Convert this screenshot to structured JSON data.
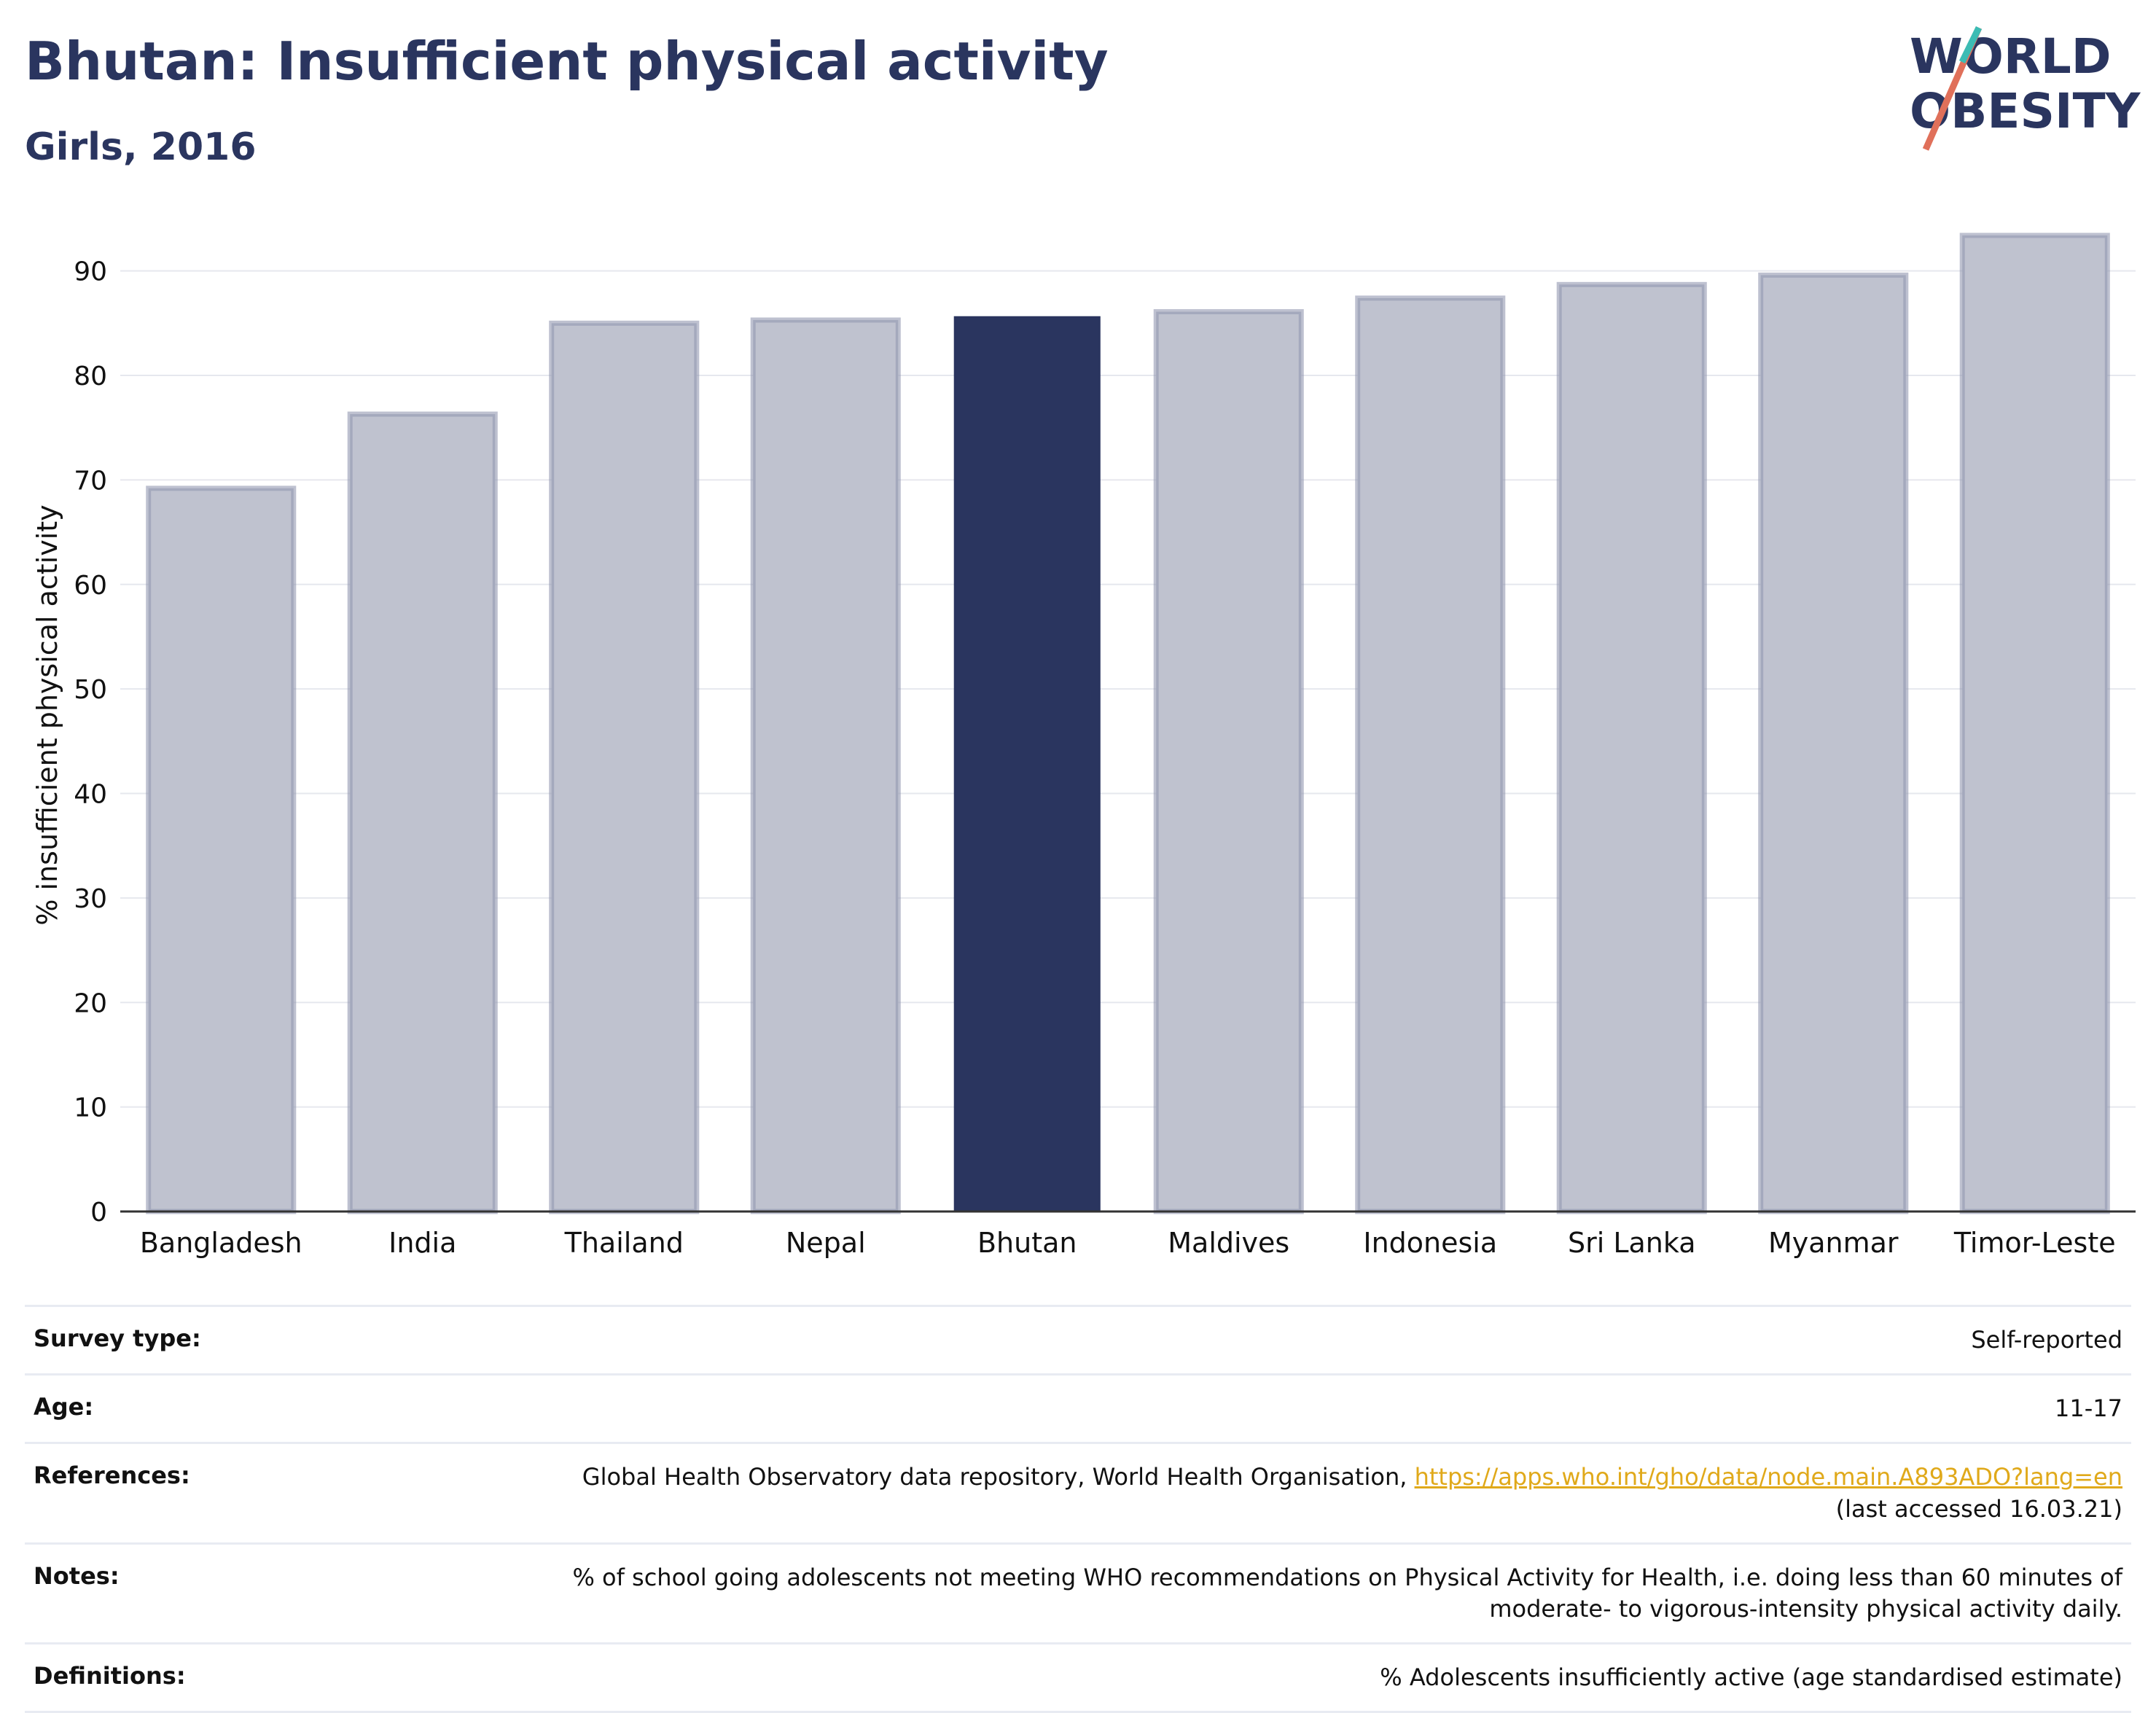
{
  "header": {
    "title": "Bhutan: Insufficient physical activity",
    "subtitle": "Girls, 2016"
  },
  "logo": {
    "line1": "WORLD",
    "line2": "OBESITY"
  },
  "colors": {
    "highlight": "#2a355f",
    "bar": "#bfc2cf",
    "bar_edge": "#9297b0",
    "link": "#e0a91a"
  },
  "chart_data": {
    "type": "bar",
    "categories": [
      "Bangladesh",
      "India",
      "Thailand",
      "Nepal",
      "Bhutan",
      "Maldives",
      "Indonesia",
      "Sri Lanka",
      "Myanmar",
      "Timor-Leste"
    ],
    "values": [
      69.2,
      76.3,
      85.0,
      85.3,
      85.6,
      86.1,
      87.4,
      88.7,
      89.6,
      93.4
    ],
    "highlight": "Bhutan",
    "ylabel": "% insufficient physical activity",
    "xlabel": "",
    "ylim": [
      0,
      95
    ],
    "yticks": [
      0,
      10,
      20,
      30,
      40,
      50,
      60,
      70,
      80,
      90
    ],
    "grid": true
  },
  "meta": [
    {
      "label": "Survey type:",
      "value": "Self-reported"
    },
    {
      "label": "Age:",
      "value": "11-17"
    },
    {
      "label": "References:",
      "value": "Global Health Observatory data repository, World Health Organisation, ",
      "link": "https://apps.who.int/gho/data/node.main.A893ADO?lang=en",
      "value2": "(last accessed 16.03.21)"
    },
    {
      "label": "Notes:",
      "value": "% of school going adolescents not meeting WHO recommendations on Physical Activity for Health, i.e. doing less than 60 minutes of",
      "value2": "moderate- to vigorous-intensity physical activity daily."
    },
    {
      "label": "Definitions:",
      "value": "% Adolescents insufficiently active (age standardised estimate)"
    }
  ]
}
